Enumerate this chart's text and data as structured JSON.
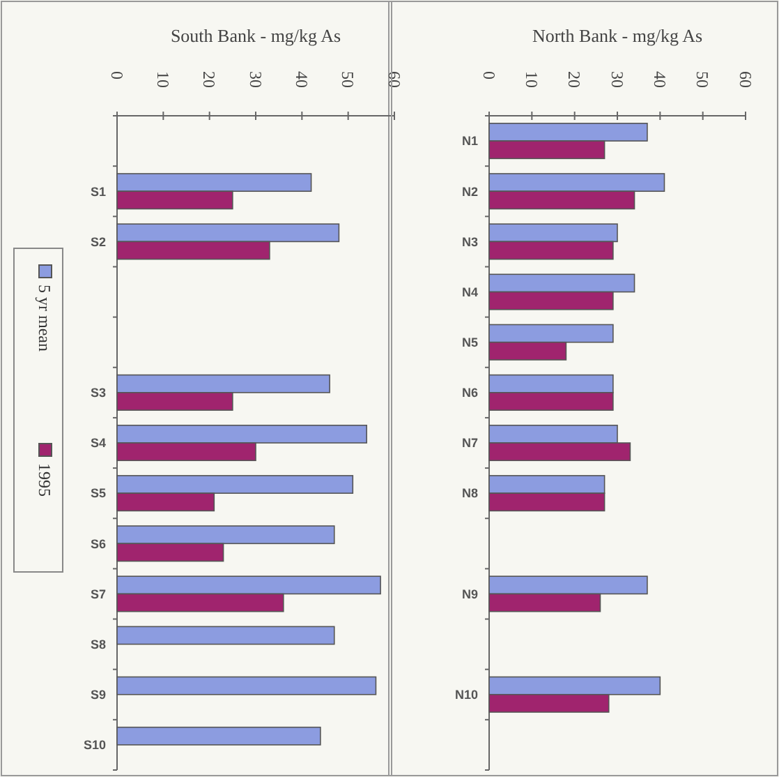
{
  "chart_data": [
    {
      "type": "bar",
      "orientation": "horizontal",
      "title": "South Bank - mg/kg As",
      "categories": [
        null,
        "S1",
        "S2",
        null,
        null,
        "S3",
        "S4",
        "S5",
        "S6",
        "S7",
        "S8",
        "S9",
        "S10"
      ],
      "xlim": [
        0,
        60
      ],
      "xticks": [
        0,
        10,
        20,
        30,
        40,
        50,
        60
      ],
      "grid": false,
      "legend": "left",
      "series": [
        {
          "name": "5 yr mean",
          "color": "#8c9ce0",
          "values": [
            null,
            42,
            48,
            null,
            null,
            46,
            54,
            51,
            47,
            57,
            47,
            56,
            44
          ]
        },
        {
          "name": "1995",
          "color": "#a0246e",
          "values": [
            null,
            25,
            33,
            null,
            null,
            25,
            30,
            21,
            23,
            36,
            null,
            null,
            null
          ]
        }
      ]
    },
    {
      "type": "bar",
      "orientation": "horizontal",
      "title": "North Bank - mg/kg As",
      "categories": [
        "N1",
        "N2",
        "N3",
        "N4",
        "N5",
        "N6",
        "N7",
        "N8",
        null,
        "N9",
        null,
        "N10",
        null
      ],
      "xlim": [
        0,
        60
      ],
      "xticks": [
        0,
        10,
        20,
        30,
        40,
        50,
        60
      ],
      "grid": false,
      "legend": false,
      "series": [
        {
          "color": "#8c9ce0",
          "values": [
            37,
            41,
            30,
            34,
            29,
            29,
            30,
            27,
            null,
            37,
            null,
            40,
            null
          ]
        },
        {
          "color": "#a0246e",
          "values": [
            27,
            34,
            29,
            29,
            18,
            29,
            33,
            27,
            null,
            26,
            null,
            28,
            null
          ]
        }
      ]
    }
  ]
}
